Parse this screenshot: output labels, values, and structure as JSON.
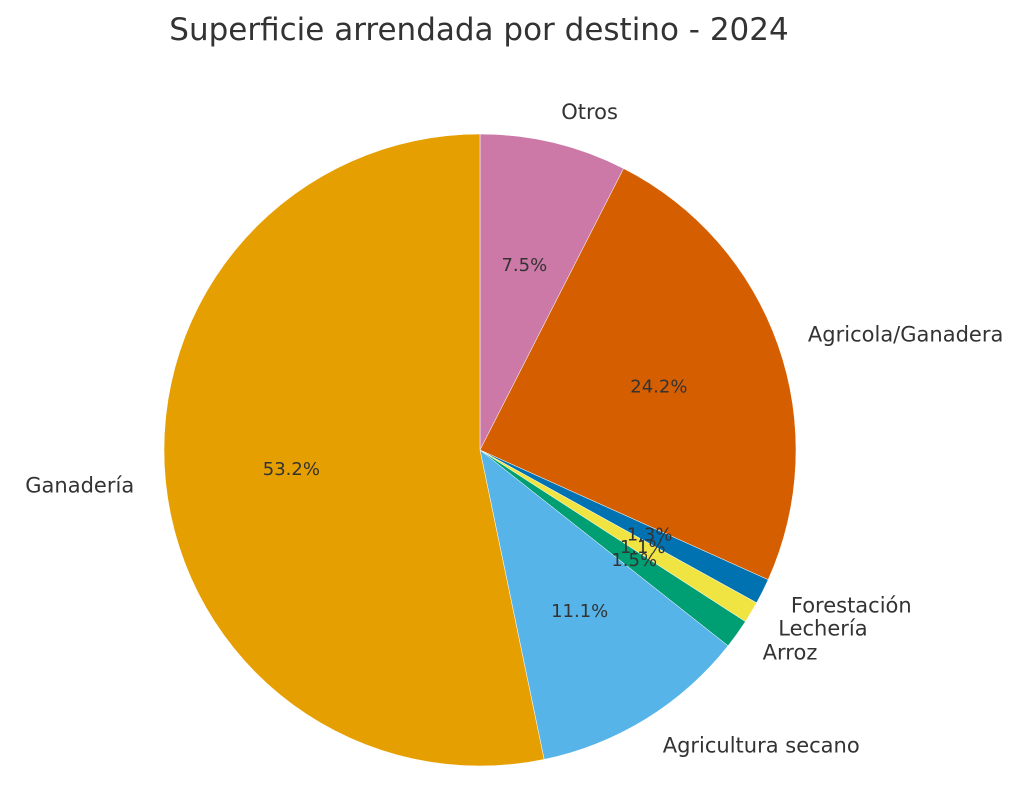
{
  "chart_data": {
    "type": "pie",
    "title": "Superficie arrendada por destino - 2024",
    "start_angle_deg": 90,
    "direction": "clockwise",
    "legend": "none",
    "slices": [
      {
        "label": "Otros",
        "value": 7.5,
        "pct_label": "7.5%",
        "color": "#CC79A7"
      },
      {
        "label": "Agricola/Ganadera",
        "value": 24.2,
        "pct_label": "24.2%",
        "color": "#D55E00"
      },
      {
        "label": "Forestación",
        "value": 1.3,
        "pct_label": "1.3%",
        "color": "#0072B2"
      },
      {
        "label": "Lechería",
        "value": 1.1,
        "pct_label": "1.1%",
        "color": "#F0E442"
      },
      {
        "label": "Arroz",
        "value": 1.5,
        "pct_label": "1.5%",
        "color": "#009E73"
      },
      {
        "label": "Agricultura secano",
        "value": 11.1,
        "pct_label": "11.1%",
        "color": "#56B4E9"
      },
      {
        "label": "Ganadería",
        "value": 53.2,
        "pct_label": "53.2%",
        "color": "#E69F00"
      }
    ]
  }
}
